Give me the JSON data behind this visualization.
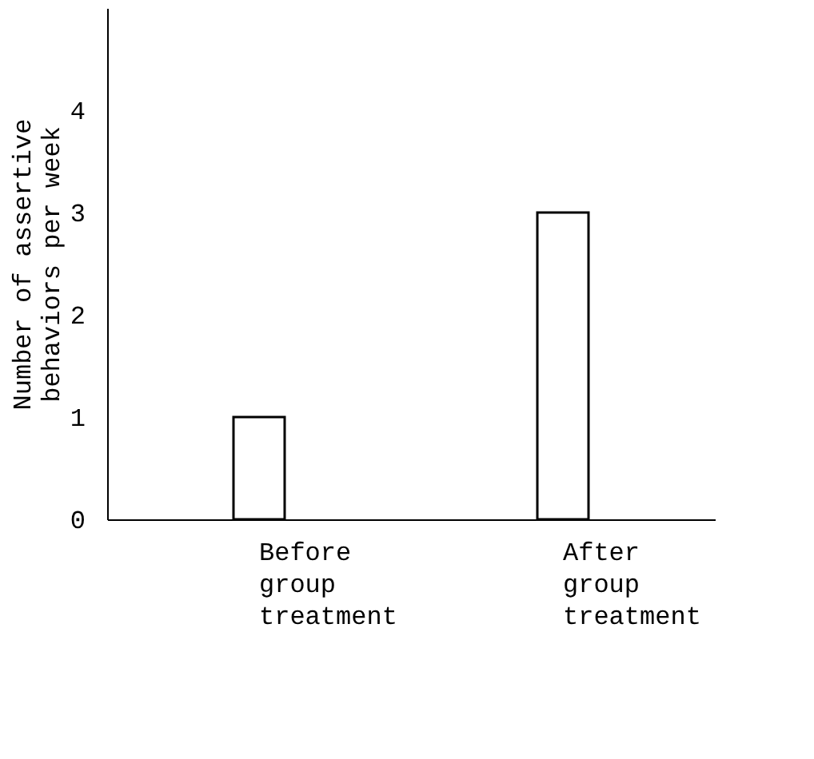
{
  "chart_data": {
    "type": "bar",
    "ylabel": "Number of assertive behaviors per week",
    "categories": [
      "Before group treatment",
      "After group treatment"
    ],
    "values": [
      1,
      3
    ],
    "color": "#ffffff",
    "ylim": [
      0,
      5
    ],
    "yticks": [
      0,
      1,
      2,
      3,
      4
    ],
    "grid": false
  }
}
